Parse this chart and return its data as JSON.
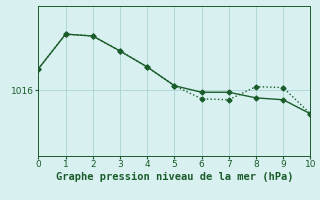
{
  "xlabel": "Graphe pression niveau de la mer (hPa)",
  "background_color": "#d8f0f0",
  "grid_color": "#b0d8d8",
  "line_color": "#1a5c2a",
  "xlim": [
    0,
    10
  ],
  "ylim": [
    1009.0,
    1025.0
  ],
  "ytick_label": "1016",
  "ytick_value": 1016,
  "series1_x": [
    0,
    1,
    2,
    3,
    4,
    5,
    6,
    7,
    8,
    9,
    10
  ],
  "series1_y": [
    1018.3,
    1022.0,
    1021.8,
    1020.2,
    1018.5,
    1016.5,
    1015.1,
    1015.0,
    1016.4,
    1016.3,
    1013.5
  ],
  "series2_x": [
    0,
    1,
    2,
    3,
    4,
    5,
    6,
    7,
    8,
    9,
    10
  ],
  "series2_y": [
    1018.3,
    1022.0,
    1021.8,
    1020.2,
    1018.5,
    1016.5,
    1015.8,
    1015.8,
    1015.2,
    1015.0,
    1013.5
  ],
  "marker_size": 2.5,
  "linewidth": 1.0,
  "xlabel_fontsize": 7.5,
  "xlabel_color": "#1a5c2a",
  "xlabel_fontweight": "bold",
  "xtick_fontsize": 6.5,
  "ytick_fontsize": 6.5,
  "tick_color": "#1a5c2a"
}
